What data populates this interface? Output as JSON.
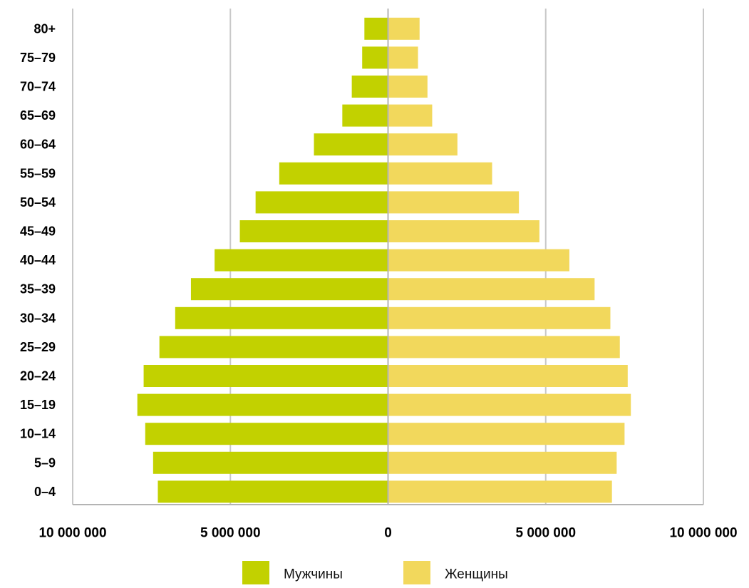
{
  "chart_data": {
    "type": "bar",
    "orientation": "horizontal",
    "layout": "population-pyramid",
    "categories": [
      "0–4",
      "5–9",
      "10–14",
      "15–19",
      "20–24",
      "25–29",
      "30–34",
      "35–39",
      "40–44",
      "45–49",
      "50–54",
      "55–59",
      "60–64",
      "65–69",
      "70–74",
      "75–79",
      "80+"
    ],
    "series": [
      {
        "name": "Мужчины",
        "side": "left",
        "color": "#c2d100",
        "values": [
          7300000,
          7450000,
          7700000,
          7950000,
          7750000,
          7250000,
          6750000,
          6250000,
          5500000,
          4700000,
          4200000,
          3450000,
          2350000,
          1450000,
          1150000,
          820000,
          750000
        ]
      },
      {
        "name": "Женщины",
        "side": "right",
        "color": "#f2d85c",
        "values": [
          7100000,
          7250000,
          7500000,
          7700000,
          7600000,
          7350000,
          7050000,
          6550000,
          5750000,
          4800000,
          4150000,
          3300000,
          2200000,
          1400000,
          1250000,
          950000,
          1000000
        ]
      }
    ],
    "xlim": [
      -10000000,
      10000000
    ],
    "x_ticks": [
      {
        "value": -10000000,
        "label": "10 000 000"
      },
      {
        "value": -5000000,
        "label": "5 000 000"
      },
      {
        "value": 0,
        "label": "0"
      },
      {
        "value": 5000000,
        "label": "5 000 000"
      },
      {
        "value": 10000000,
        "label": "10 000 000"
      }
    ],
    "grid": true,
    "legend_position": "bottom-center",
    "title": "",
    "xlabel": "",
    "ylabel": ""
  }
}
